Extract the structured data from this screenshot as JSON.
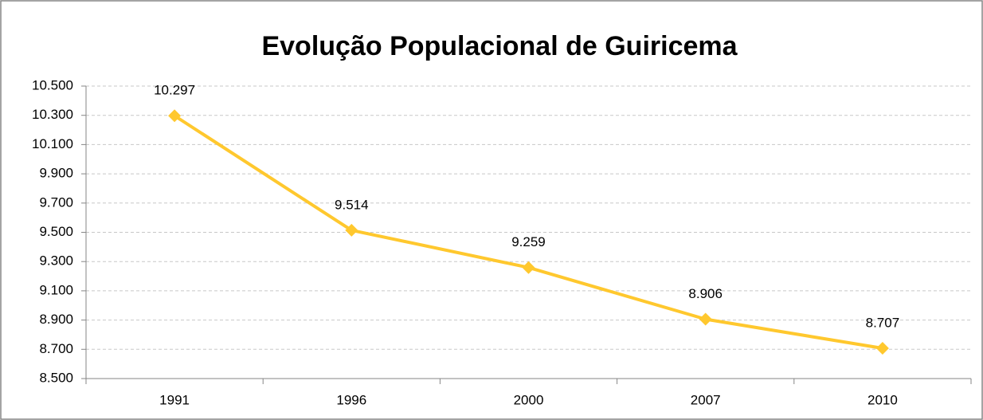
{
  "chart_data": {
    "type": "line",
    "title": "Evolução Populacional de Guiricema",
    "categories": [
      "1991",
      "1996",
      "2000",
      "2007",
      "2010"
    ],
    "values": [
      10297,
      9514,
      9259,
      8906,
      8707
    ],
    "value_labels": [
      "10.297",
      "9.514",
      "9.259",
      "8.906",
      "8.707"
    ],
    "color": "#ffc82e",
    "ylim": [
      8500,
      10500
    ],
    "yticks": [
      {
        "value": 8500,
        "label": "8.500"
      },
      {
        "value": 8700,
        "label": "8.700"
      },
      {
        "value": 8900,
        "label": "8.900"
      },
      {
        "value": 9100,
        "label": "9.100"
      },
      {
        "value": 9300,
        "label": "9.300"
      },
      {
        "value": 9500,
        "label": "9.500"
      },
      {
        "value": 9700,
        "label": "9.700"
      },
      {
        "value": 9900,
        "label": "9.900"
      },
      {
        "value": 10100,
        "label": "10.100"
      },
      {
        "value": 10300,
        "label": "10.300"
      },
      {
        "value": 10500,
        "label": "10.500"
      }
    ],
    "grid": true
  }
}
